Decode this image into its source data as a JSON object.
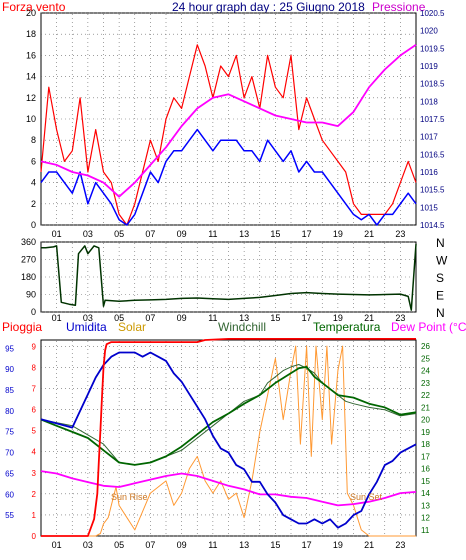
{
  "colors": {
    "wind": "#ff0000",
    "pressure": "#ff00ff",
    "wind_avg": "#0000ff",
    "dir": "#003300",
    "rain": "#ff0000",
    "humidity": "#0000cc",
    "solar": "#ff9933",
    "windchill": "#336633",
    "temperature": "#006600",
    "dewpoint": "#ff00ff",
    "label_gust": "#ff0000",
    "label_pressure": "#cc00cc"
  },
  "header": {
    "left_label": "Forza vento",
    "title": "24 hour graph day : 25 Giugno 2018",
    "right_label": "Pressione"
  },
  "hour_ticks": [
    "01",
    "03",
    "05",
    "07",
    "09",
    "11",
    "13",
    "15",
    "17",
    "19",
    "21",
    "23"
  ],
  "panel2": {
    "y_ticks": [
      "360",
      "270",
      "180",
      "90",
      "0"
    ],
    "compass": [
      "N",
      "W",
      "S",
      "E",
      "N"
    ]
  },
  "panel3_header": {
    "pioggia": "Pioggia",
    "umidita": "Umidita",
    "solar": "Solar",
    "windchill": "Windchill",
    "temperatura": "Temperatura",
    "dewpoint": "Dew Point (°C)"
  },
  "annotations": {
    "sunrise": "Sun Rise",
    "sunset": "Sun Set"
  },
  "chart_data": [
    {
      "type": "line",
      "x_unit": "hour",
      "xlim": [
        0,
        24
      ],
      "left_axis": {
        "label": "Forza vento",
        "ylim": [
          0,
          20
        ],
        "ticks": [
          0,
          2,
          4,
          6,
          8,
          10,
          12,
          14,
          16,
          18,
          20
        ]
      },
      "right_axis": {
        "label": "Pressione",
        "ylim": [
          1014.5,
          1020.5
        ],
        "ticks": [
          "1014.5",
          "1015",
          "1015.5",
          "1016",
          "1016.5",
          "1017",
          "1017.5",
          "1018",
          "1018.5",
          "1019",
          "1019.5",
          "1020",
          "1020.5"
        ]
      },
      "series": [
        {
          "axis": "left",
          "x": [
            0,
            0.5,
            1,
            1.5,
            2,
            2.5,
            3,
            3.5,
            4,
            4.5,
            5,
            5.5,
            6,
            6.5,
            7,
            7.5,
            8,
            8.5,
            9,
            9.5,
            10,
            10.5,
            11,
            11.5,
            12,
            12.5,
            13,
            13.5,
            14,
            14.5,
            15,
            15.5,
            16,
            16.5,
            17,
            17.5,
            18,
            18.5,
            19,
            19.5,
            20,
            20.5,
            21,
            21.5,
            22,
            22.5,
            23,
            23.5,
            24
          ],
          "y": [
            5,
            13,
            9,
            6,
            7,
            12,
            5,
            9,
            5,
            4,
            1,
            0,
            2,
            5,
            8,
            6,
            10,
            12,
            11,
            14,
            17,
            15,
            12,
            15,
            14,
            16,
            12,
            14,
            11,
            16,
            13,
            12,
            16,
            9,
            12,
            10,
            8,
            7,
            6,
            5,
            2,
            1,
            1,
            1,
            1,
            2,
            4,
            6,
            4
          ]
        },
        {
          "axis": "left",
          "x": [
            0,
            0.5,
            1,
            1.5,
            2,
            2.5,
            3,
            3.5,
            4,
            4.5,
            5,
            5.5,
            6,
            6.5,
            7,
            7.5,
            8,
            8.5,
            9,
            9.5,
            10,
            10.5,
            11,
            11.5,
            12,
            12.5,
            13,
            13.5,
            14,
            14.5,
            15,
            15.5,
            16,
            16.5,
            17,
            17.5,
            18,
            18.5,
            19,
            19.5,
            20,
            20.5,
            21,
            21.5,
            22,
            22.5,
            23,
            23.5,
            24
          ],
          "y": [
            4,
            5,
            5,
            4,
            3,
            5,
            2,
            4,
            3,
            2,
            0.5,
            0,
            1,
            3,
            5,
            4,
            6,
            7,
            7,
            8,
            9,
            8,
            7,
            8,
            8,
            8,
            7,
            7,
            6,
            8,
            7,
            6,
            7,
            5,
            6,
            5,
            5,
            4,
            3,
            2,
            1,
            0.5,
            1,
            0,
            1,
            1,
            2,
            3,
            2
          ]
        },
        {
          "axis": "right",
          "x": [
            0,
            1,
            2,
            3,
            4,
            5,
            6,
            7,
            8,
            9,
            10,
            11,
            12,
            13,
            14,
            15,
            16,
            17,
            18,
            19,
            20,
            21,
            22,
            23,
            24
          ],
          "y": [
            1016.3,
            1016.2,
            1016.0,
            1015.9,
            1015.7,
            1015.3,
            1015.7,
            1016.2,
            1016.7,
            1017.3,
            1017.8,
            1018.1,
            1018.2,
            1018.0,
            1017.8,
            1017.6,
            1017.5,
            1017.4,
            1017.4,
            1017.3,
            1017.7,
            1018.4,
            1018.9,
            1019.3,
            1019.6
          ]
        }
      ]
    },
    {
      "type": "line",
      "x_unit": "hour",
      "xlim": [
        0,
        24
      ],
      "ylim": [
        0,
        360
      ],
      "series": [
        {
          "x": [
            0,
            0.3,
            0.8,
            1.0,
            1.3,
            1.8,
            2.2,
            2.4,
            2.6,
            2.8,
            3.0,
            3.4,
            3.7,
            4.0,
            4.1,
            5,
            6,
            7,
            8,
            9,
            10,
            11,
            12,
            13,
            14,
            15,
            16,
            17,
            18,
            19,
            20,
            21,
            22,
            23,
            23.5,
            23.7,
            24
          ],
          "y": [
            330,
            330,
            335,
            340,
            50,
            40,
            35,
            300,
            320,
            340,
            300,
            340,
            330,
            30,
            60,
            55,
            60,
            62,
            65,
            70,
            72,
            68,
            65,
            70,
            75,
            85,
            95,
            100,
            95,
            92,
            90,
            88,
            90,
            92,
            80,
            10,
            350
          ]
        }
      ]
    },
    {
      "type": "line",
      "x_unit": "hour",
      "xlim": [
        0,
        24
      ],
      "left_axis": {
        "label": "Umidita",
        "ylim": [
          50,
          97
        ],
        "ticks": [
          55,
          60,
          65,
          70,
          75,
          80,
          85,
          90,
          95
        ]
      },
      "rain_axis": {
        "label": "Pioggia",
        "ylim": [
          0,
          9.3
        ],
        "ticks": [
          0,
          1,
          2,
          3,
          4,
          5,
          6,
          7,
          8,
          9
        ]
      },
      "right_axis": {
        "label": "Dew Point (°C)",
        "ylim": [
          10.5,
          26.5
        ],
        "ticks": [
          11,
          12,
          13,
          14,
          15,
          16,
          17,
          18,
          19,
          20,
          21,
          22,
          23,
          24,
          25,
          26
        ]
      },
      "series": [
        {
          "name": "Pioggia",
          "axis": "rain",
          "x": [
            0,
            3.0,
            3.4,
            3.6,
            3.7,
            3.8,
            3.9,
            4.0,
            4.1,
            4.2,
            4.5,
            10,
            10.5,
            12,
            24
          ],
          "y": [
            0,
            0,
            0.8,
            2,
            3.5,
            5,
            6.5,
            8,
            8.8,
            9.1,
            9.2,
            9.2,
            9.3,
            9.35,
            9.35
          ]
        },
        {
          "name": "Umidita",
          "axis": "left",
          "x": [
            0,
            1,
            2,
            2.5,
            3,
            3.5,
            4,
            4.5,
            5,
            5.5,
            6,
            6.5,
            7,
            7.5,
            8,
            8.5,
            9,
            9.5,
            10,
            10.5,
            11,
            11.5,
            12,
            12.5,
            13,
            13.5,
            14,
            14.5,
            15,
            15.5,
            16,
            16.5,
            17,
            17.5,
            18,
            18.5,
            19,
            19.5,
            20,
            20.5,
            21,
            21.5,
            22,
            22.5,
            23,
            23.5,
            24
          ],
          "y": [
            78,
            77,
            76,
            80,
            84,
            88,
            91,
            93,
            94,
            94,
            94,
            93,
            94,
            93,
            92,
            89,
            87,
            84,
            81,
            78,
            74,
            71,
            70,
            67,
            66,
            63,
            63,
            60,
            58,
            55,
            54,
            53,
            53,
            54,
            53,
            54,
            52,
            53,
            55,
            56,
            60,
            63,
            67,
            68,
            70,
            71,
            72
          ]
        },
        {
          "name": "Solar",
          "axis": "right",
          "x": [
            0,
            3.5,
            3.8,
            4.0,
            4.3,
            4.5,
            4.8,
            5,
            6,
            7,
            8,
            8.5,
            9,
            9.5,
            10,
            10.5,
            11,
            11.5,
            12,
            12.5,
            13,
            13.5,
            14,
            14.5,
            15,
            15.5,
            16,
            16.3,
            16.6,
            17,
            17.3,
            17.6,
            18,
            18.3,
            18.6,
            19,
            19.3,
            19.6,
            20,
            20.5,
            21,
            22,
            23,
            24
          ],
          "y": [
            10.5,
            10.5,
            10.7,
            11.5,
            12,
            13,
            14.5,
            13,
            11,
            14,
            15,
            13,
            14,
            16,
            17,
            15,
            14,
            15,
            13.5,
            14,
            12,
            15,
            19,
            22,
            25,
            20,
            24,
            26,
            18,
            26,
            17,
            26,
            20,
            26,
            18,
            24,
            26,
            14,
            13,
            11,
            10.5,
            10.5,
            10.5,
            10.5
          ]
        },
        {
          "name": "Windchill",
          "axis": "right",
          "x": [
            0,
            2,
            4,
            5,
            6,
            7,
            8,
            9,
            10,
            11,
            12,
            13,
            14,
            14.5,
            15,
            15.5,
            16,
            16.5,
            17,
            17.5,
            18,
            18.5,
            19,
            19.5,
            20,
            21,
            22,
            23,
            24
          ],
          "y": [
            20,
            19.5,
            18,
            16.5,
            16.3,
            16.5,
            17,
            17.5,
            18.5,
            19.5,
            20.5,
            21.5,
            22,
            23,
            23.5,
            24,
            24.3,
            24.5,
            24.2,
            23.8,
            23,
            22.5,
            22,
            21.5,
            21.3,
            21,
            20.8,
            20.3,
            20.5
          ]
        },
        {
          "name": "Temperatura",
          "axis": "right",
          "x": [
            0,
            1,
            2,
            3,
            4,
            5,
            6,
            7,
            8,
            9,
            10,
            11,
            12,
            13,
            14,
            15,
            16,
            16.5,
            17,
            17.5,
            18,
            19,
            20,
            21,
            22,
            23,
            24
          ],
          "y": [
            20,
            19.5,
            19,
            18.5,
            17.5,
            16.5,
            16.3,
            16.5,
            17,
            17.8,
            18.8,
            19.8,
            20.5,
            21.3,
            22,
            23,
            23.8,
            24.2,
            24.3,
            23.5,
            23,
            22,
            21.8,
            21.3,
            21,
            20.4,
            20.6
          ]
        },
        {
          "name": "Dew Point",
          "axis": "right",
          "x": [
            0,
            1,
            2,
            3,
            4,
            5,
            6,
            7,
            8,
            9,
            10,
            11,
            12,
            13,
            14,
            15,
            16,
            17,
            18,
            19,
            20,
            21,
            22,
            23,
            24
          ],
          "y": [
            15.8,
            15.6,
            15.2,
            14.9,
            14.6,
            14.5,
            14.8,
            15.1,
            15.4,
            15.6,
            15.4,
            15.0,
            14.6,
            14.3,
            13.9,
            13.9,
            13.7,
            13.6,
            13.3,
            13,
            13.1,
            13.3,
            13.6,
            14,
            14.1
          ]
        }
      ]
    }
  ]
}
